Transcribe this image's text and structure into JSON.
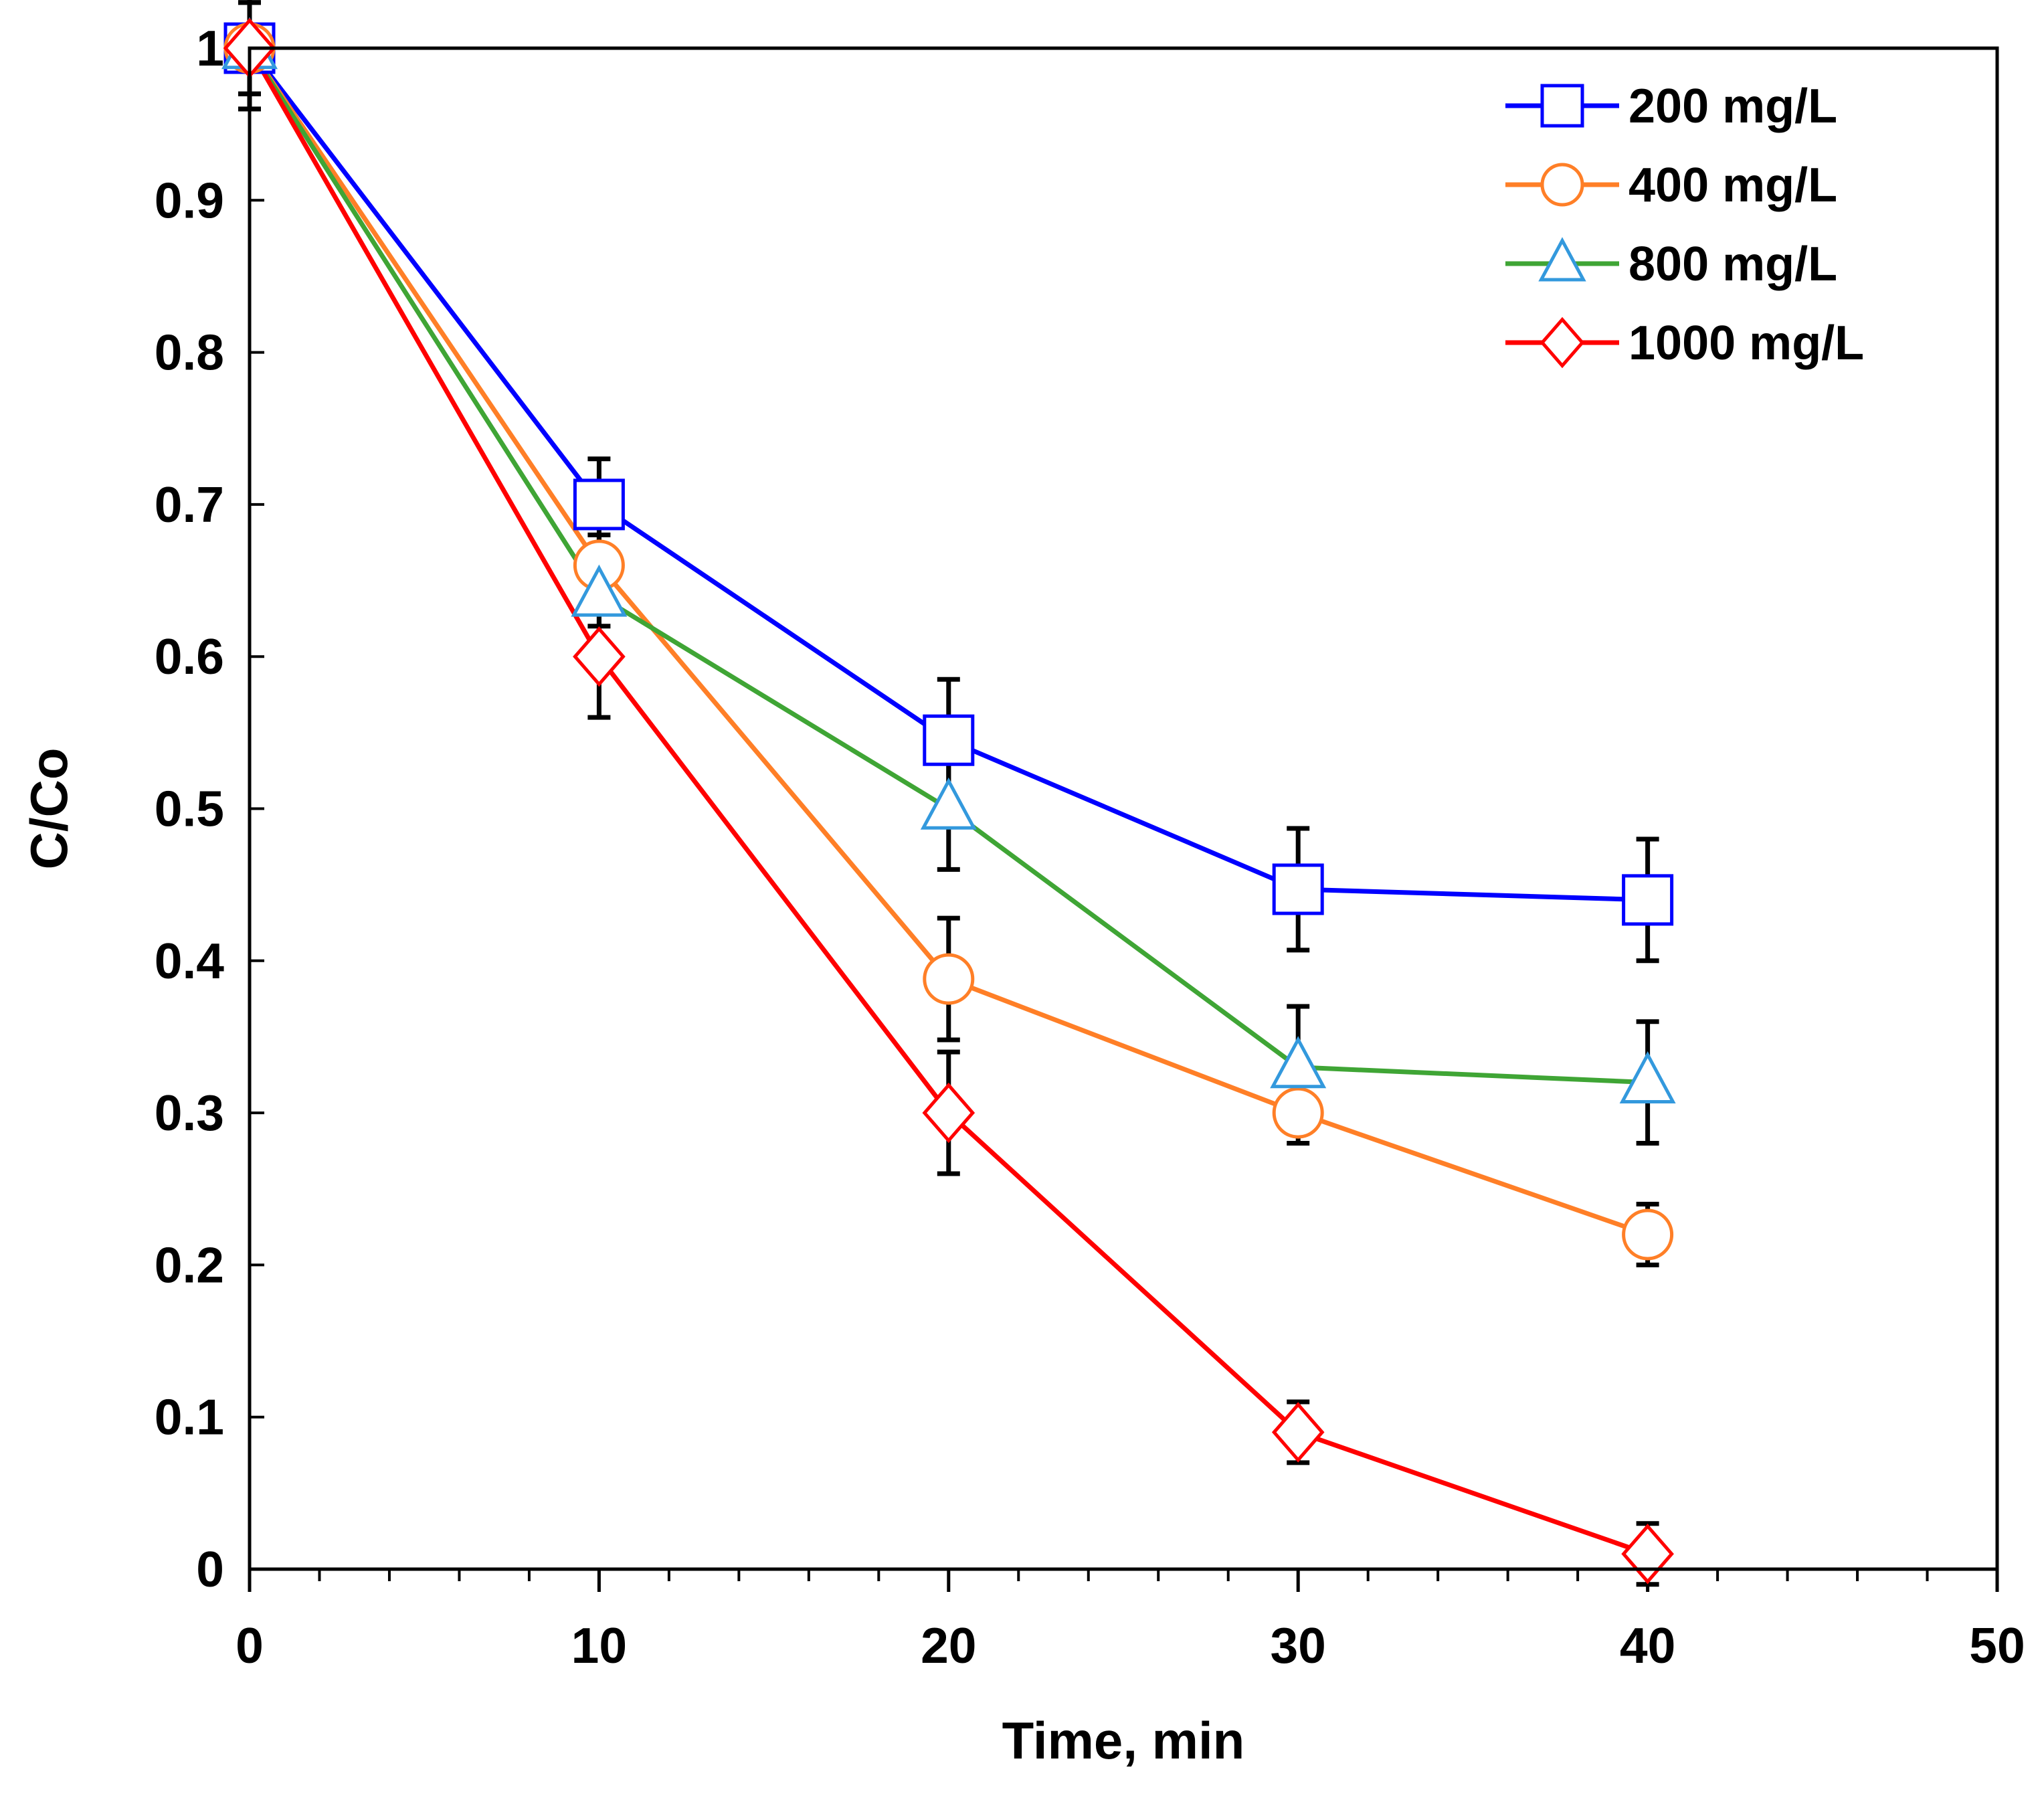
{
  "chart_data": {
    "type": "line",
    "xlabel": "Time, min",
    "ylabel": "C/Co",
    "xlim": [
      0,
      50
    ],
    "ylim": [
      0,
      1
    ],
    "xticks": [
      0,
      10,
      20,
      30,
      40,
      50
    ],
    "yticks": [
      0,
      0.1,
      0.2,
      0.3,
      0.4,
      0.5,
      0.6,
      0.7,
      0.8,
      0.9,
      1
    ],
    "xtick_labels": [
      "0",
      "10",
      "20",
      "30",
      "40",
      "50"
    ],
    "ytick_labels": [
      "0",
      "0.1",
      "0.2",
      "0.3",
      "0.4",
      "0.5",
      "0.6",
      "0.7",
      "0.8",
      "0.9",
      "1"
    ],
    "x_minor_step": 2,
    "grid": false,
    "legend_position": "top-right",
    "series": [
      {
        "name": "200 mg/L",
        "color": "#0000ff",
        "marker": "square",
        "marker_edge": "#0000ff",
        "x": [
          0,
          10,
          20,
          30,
          40
        ],
        "y": [
          1.0,
          0.7,
          0.545,
          0.447,
          0.44
        ],
        "error": [
          0.04,
          0.03,
          0.04,
          0.04,
          0.04
        ]
      },
      {
        "name": "400 mg/L",
        "color": "#ff7f27",
        "marker": "circle",
        "marker_edge": "#ff7f27",
        "x": [
          0,
          10,
          20,
          30,
          40
        ],
        "y": [
          1.0,
          0.66,
          0.388,
          0.3,
          0.22
        ],
        "error": [
          0.03,
          0.02,
          0.04,
          0.02,
          0.02
        ]
      },
      {
        "name": "800 mg/L",
        "color": "#3fa535",
        "marker": "triangle",
        "marker_edge": "#3399dd",
        "x": [
          0,
          10,
          20,
          30,
          40
        ],
        "y": [
          1.0,
          0.64,
          0.5,
          0.33,
          0.32
        ],
        "error": [
          0.03,
          0.02,
          0.04,
          0.04,
          0.04
        ]
      },
      {
        "name": "1000 mg/L",
        "color": "#ff0000",
        "marker": "diamond",
        "marker_edge": "#ff0000",
        "x": [
          0,
          10,
          20,
          30,
          40
        ],
        "y": [
          1.0,
          0.6,
          0.3,
          0.09,
          0.01
        ],
        "error": [
          0.04,
          0.04,
          0.04,
          0.02,
          0.02
        ]
      }
    ]
  }
}
